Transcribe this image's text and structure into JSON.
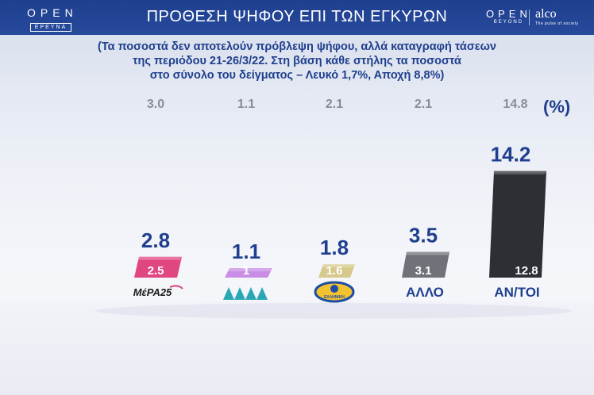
{
  "header": {
    "logo_left_big": "OPEN",
    "logo_left_small": "ΕΡΕΥΝΑ",
    "title": "ΠΡΟΘΕΣΗ ΨΗΦΟΥ ΕΠΙ ΤΩΝ ΕΓΚΥΡΩΝ",
    "logo_right_big": "OPEN",
    "logo_right_small": "BEYOND",
    "alco": "alco",
    "alco_sub": "The pulse of society"
  },
  "subtitle": {
    "line1": "(Τα ποσοστά δεν αποτελούν πρόβλεψη ψήφου, αλλά καταγραφή τάσεων",
    "line2": "της περιόδου 21-26/3/22. Στη βάση κάθε στήλης τα ποσοστά",
    "line3": "στο σύνολο του δείγματος – Λευκό 1,7%, Αποχή 8,8%)"
  },
  "unit_label": "(%)",
  "colors": {
    "navy": "#1f3f8e",
    "mera25": "#e0467f",
    "left": "#c98de6",
    "ellisi": "#d6c98b",
    "allo": "#6f7278",
    "antoi": "#2d2f34"
  },
  "chart_data": {
    "type": "bar",
    "categories": [
      "ΜέΡΑ25",
      "ΝΕΑ ΑΡΙΣΤΕΡΑ",
      "ΕΛΛΗΝΙΚΗ ΛΥΣΗ",
      "ΑΛΛΟ",
      "ΑΝ/ΤΟΙ"
    ],
    "category_labels": [
      "ΜέΡΑ25",
      "",
      "ΕΛΛΗΝΙΚΗ",
      "ΑΛΛΟ",
      "ΑΝ/ΤΟΙ"
    ],
    "series": [
      {
        "name": "previous",
        "values": [
          3.0,
          1.1,
          2.1,
          2.1,
          14.8
        ],
        "labels": [
          "3.0",
          "1.1",
          "2.1",
          "2.1",
          "14.8"
        ]
      },
      {
        "name": "valid",
        "values": [
          2.8,
          1.1,
          1.8,
          3.5,
          14.2
        ],
        "labels": [
          "2.8",
          "1.1",
          "1.8",
          "3.5",
          "14.2"
        ]
      },
      {
        "name": "sample",
        "values": [
          2.5,
          1,
          1.6,
          3.1,
          12.8
        ],
        "labels": [
          "2.5",
          "1",
          "1.6",
          "3.1",
          "12.8"
        ]
      }
    ],
    "ylim": [
      0,
      15
    ],
    "unit": "(%)"
  }
}
